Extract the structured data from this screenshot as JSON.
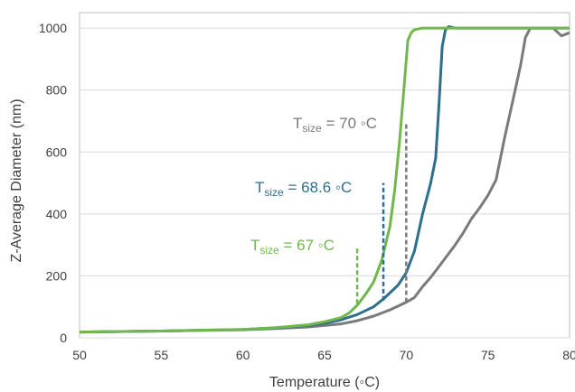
{
  "chart_data": {
    "type": "line",
    "title": "",
    "xlabel": "Temperature (◦C)",
    "ylabel": "Z-Average Diameter (nm)",
    "xlim": [
      50,
      80
    ],
    "ylim": [
      0,
      1050
    ],
    "x_ticks": [
      50,
      55,
      60,
      65,
      70,
      75,
      80
    ],
    "y_ticks": [
      0,
      200,
      400,
      600,
      800,
      1000
    ],
    "grid": "horizontal",
    "series": [
      {
        "color": "#70b84d",
        "x": [
          49.5,
          55,
          60,
          62,
          64,
          65,
          66,
          66.5,
          67,
          67.5,
          68,
          68.5,
          69,
          69.3,
          69.6,
          69.9,
          70.1,
          70.3,
          70.5,
          70.8,
          71,
          72,
          80
        ],
        "y": [
          18,
          22,
          27,
          33,
          42,
          52,
          65,
          80,
          105,
          140,
          180,
          250,
          360,
          480,
          640,
          830,
          960,
          985,
          995,
          998,
          1000,
          1000,
          1000
        ]
      },
      {
        "color": "#2e6f8e",
        "x": [
          49.5,
          55,
          60,
          62,
          64,
          65,
          66,
          67,
          68,
          68.6,
          69.5,
          70,
          70.5,
          71,
          71.5,
          71.8,
          72,
          72.2,
          72.4,
          72.6,
          73,
          80
        ],
        "y": [
          18,
          22,
          27,
          32,
          40,
          47,
          58,
          75,
          100,
          125,
          170,
          210,
          280,
          400,
          500,
          580,
          750,
          940,
          995,
          1005,
          1000,
          1000
        ]
      },
      {
        "color": "#7a7a7a",
        "x": [
          49.5,
          55,
          60,
          62,
          64,
          66,
          67,
          68,
          69,
          70,
          70.5,
          71,
          71.5,
          72,
          72.5,
          73,
          73.5,
          74,
          74.5,
          75,
          75.5,
          76,
          76.5,
          77,
          77.3,
          77.6,
          78,
          79,
          79.5,
          80
        ],
        "y": [
          18,
          22,
          26,
          30,
          35,
          45,
          55,
          70,
          90,
          115,
          130,
          165,
          195,
          230,
          265,
          300,
          340,
          385,
          420,
          460,
          510,
          640,
          760,
          880,
          970,
          1000,
          1000,
          1000,
          975,
          985
        ]
      }
    ],
    "annotations": [
      {
        "id": "green",
        "label_main": "T",
        "label_sub": "size",
        "label_rest": " = 67 ◦C",
        "color": "#70b84d",
        "x": 67,
        "y0": 110,
        "y1": 295
      },
      {
        "id": "blue",
        "label_main": "T",
        "label_sub": "size",
        "label_rest": " = 68.6 ◦C",
        "color": "#2e6f8e",
        "x": 68.6,
        "y0": 120,
        "y1": 500
      },
      {
        "id": "grey",
        "label_main": "T",
        "label_sub": "size",
        "label_rest": " = 70 ◦C",
        "color": "#7a7a7a",
        "x": 70,
        "y0": 115,
        "y1": 690
      }
    ]
  }
}
